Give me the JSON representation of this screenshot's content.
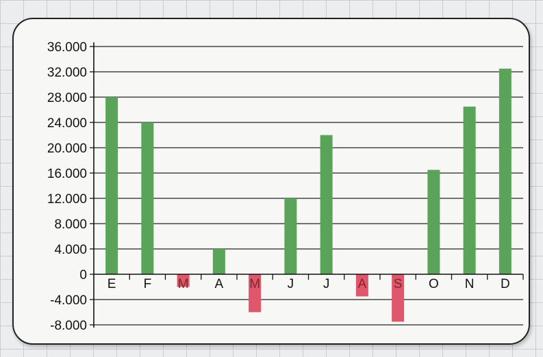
{
  "chart_data": {
    "type": "bar",
    "title": "",
    "xlabel": "",
    "ylabel": "",
    "categories": [
      "E",
      "F",
      "M",
      "A",
      "M",
      "J",
      "J",
      "A",
      "S",
      "O",
      "N",
      "D"
    ],
    "values": [
      28000,
      24000,
      -2000,
      4000,
      -6000,
      12000,
      22000,
      -3500,
      -7500,
      16500,
      26500,
      32500
    ],
    "ylim": [
      -8000,
      36000
    ],
    "yticks": [
      36000,
      32000,
      28000,
      24000,
      20000,
      16000,
      12000,
      8000,
      4000,
      0,
      -4000,
      -8000
    ],
    "ytick_labels": [
      "36.000",
      "32.000",
      "28.000",
      "24.000",
      "20.000",
      "16.000",
      "12.000",
      "8.000",
      "4.000",
      "0",
      "-4.000",
      "-8.000"
    ],
    "grid": true,
    "colors": {
      "positive": "#5aa45a",
      "negative": "#e0566a",
      "axis": "#111111",
      "grid": "#222222"
    }
  }
}
